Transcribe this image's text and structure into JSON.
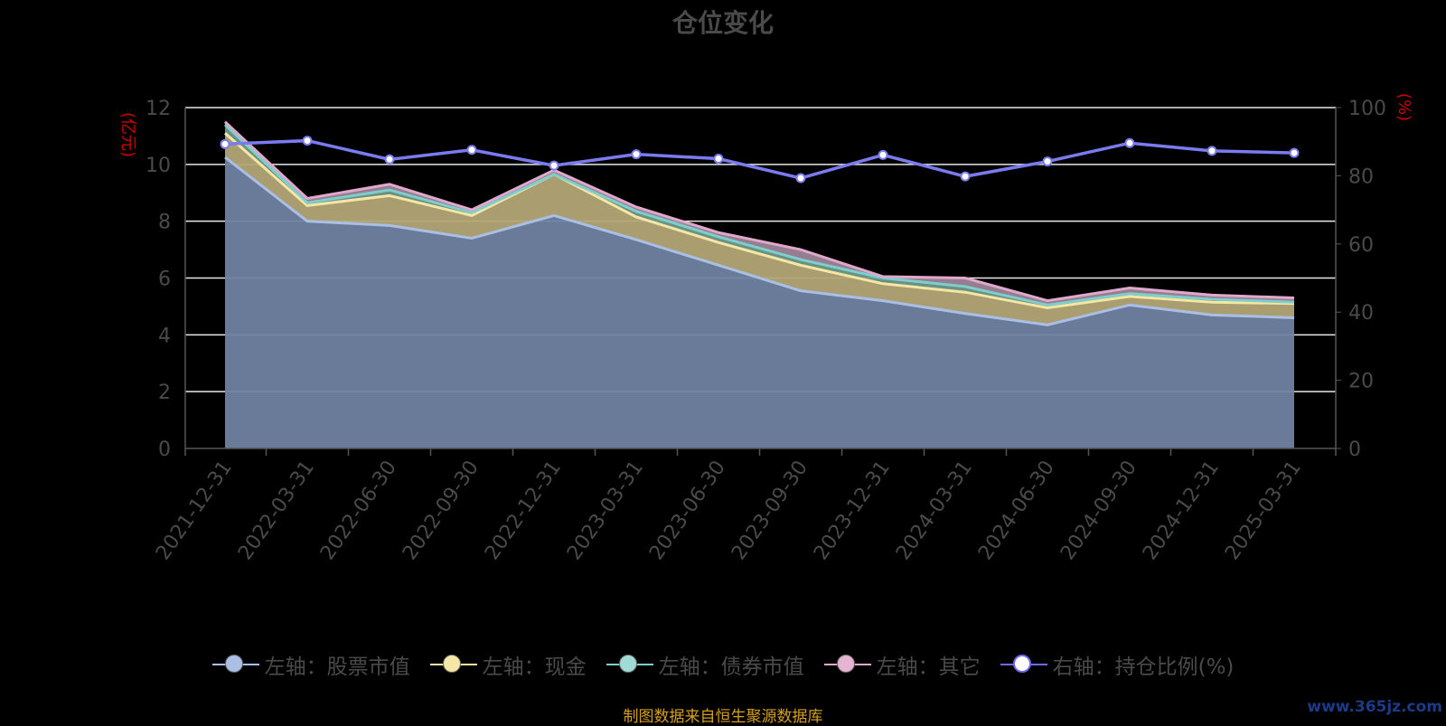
{
  "title": "仓位变化",
  "left_unit": "(亿元)",
  "right_unit": "(%)",
  "source_text": "制图数据来自恒生聚源数据库",
  "watermark": "www.365jz.com",
  "legend": [
    {
      "label": "左轴：股票市值",
      "line": "#a9bfe6",
      "fill": "#a9bfe6"
    },
    {
      "label": "左轴：现金",
      "line": "#f5e6a3",
      "fill": "#f7e7a6"
    },
    {
      "label": "左轴：债券市值",
      "line": "#7ecfcc",
      "fill": "#9fdcd8"
    },
    {
      "label": "左轴：其它",
      "line": "#e0a8cc",
      "fill": "#e8b4d4"
    },
    {
      "label": "右轴：持仓比例(%)",
      "line": "#6b6bea",
      "fill": "#ffffff"
    }
  ],
  "chart_data": {
    "type": "area",
    "title": "仓位变化",
    "x": [
      "2021-12-31",
      "2022-03-31",
      "2022-06-30",
      "2022-09-30",
      "2022-12-31",
      "2023-03-31",
      "2023-06-30",
      "2023-09-30",
      "2023-12-31",
      "2024-03-31",
      "2024-06-30",
      "2024-09-30",
      "2024-12-31",
      "2025-03-31"
    ],
    "y_left_label": "(亿元)",
    "y_right_label": "(%)",
    "y_left_range": [
      0,
      12
    ],
    "y_left_ticks": [
      0,
      2,
      4,
      6,
      8,
      10,
      12
    ],
    "y_right_range": [
      0,
      100
    ],
    "y_right_ticks": [
      0,
      20,
      40,
      60,
      80,
      100
    ],
    "stacked_series": [
      {
        "name": "左轴：股票市值",
        "axis": "left",
        "color": "#a9bfe6",
        "fill": "#6f82a0",
        "values": [
          10.25,
          8.0,
          7.85,
          7.4,
          8.2,
          7.35,
          6.45,
          5.55,
          5.2,
          4.75,
          4.35,
          5.05,
          4.7,
          4.6
        ]
      },
      {
        "name": "左轴：现金",
        "axis": "left",
        "color": "#f5e6a3",
        "fill": "#b3a677",
        "values": [
          0.85,
          0.55,
          1.05,
          0.8,
          1.45,
          0.8,
          0.8,
          0.9,
          0.6,
          0.75,
          0.6,
          0.3,
          0.45,
          0.5
        ]
      },
      {
        "name": "左轴：债券市值",
        "axis": "left",
        "color": "#7ecfcc",
        "fill": "#6e9a8c",
        "values": [
          0.3,
          0.1,
          0.2,
          0.1,
          0.0,
          0.2,
          0.2,
          0.2,
          0.2,
          0.2,
          0.1,
          0.1,
          0.1,
          0.05
        ]
      },
      {
        "name": "左轴：其它",
        "axis": "left",
        "color": "#e0a8cc",
        "fill": "#9e8598",
        "values": [
          0.1,
          0.15,
          0.2,
          0.1,
          0.15,
          0.15,
          0.15,
          0.35,
          0.05,
          0.3,
          0.15,
          0.2,
          0.15,
          0.15
        ]
      }
    ],
    "line_series": [
      {
        "name": "右轴：持仓比例(%)",
        "axis": "right",
        "color": "#7b7bf0",
        "values": [
          89.3,
          90.3,
          84.8,
          87.6,
          83.0,
          86.3,
          85.0,
          79.3,
          86.1,
          79.8,
          84.2,
          89.6,
          87.3,
          86.7
        ]
      }
    ],
    "grid": true,
    "legend_position": "bottom"
  }
}
